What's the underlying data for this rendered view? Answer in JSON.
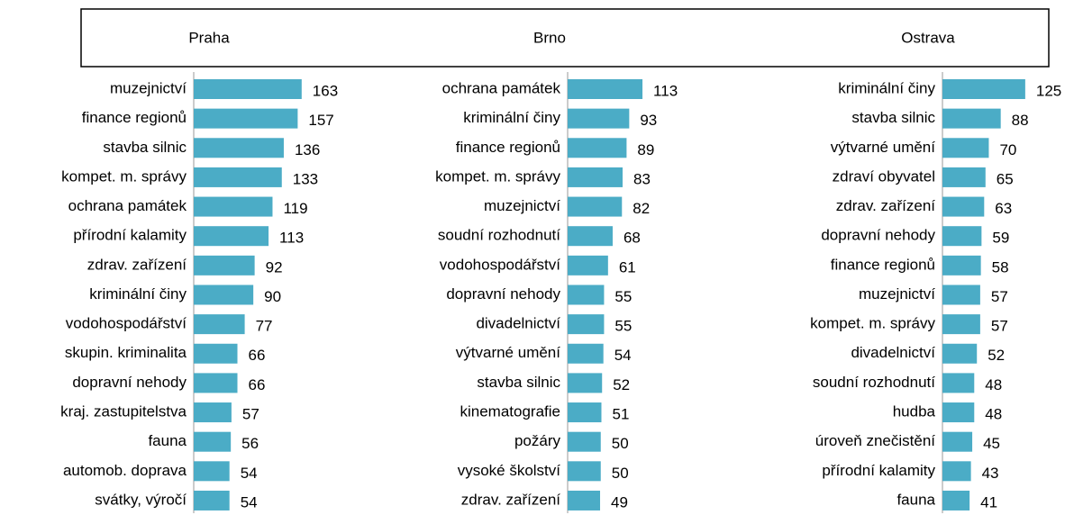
{
  "chart_data": [
    {
      "type": "bar",
      "title": "Praha",
      "color": "#4bacc6",
      "xlim": [
        0,
        200
      ],
      "categories": [
        "muzejnictví",
        "finance regionů",
        "stavba silnic",
        "kompet. m. správy",
        "ochrana památek",
        "přírodní kalamity",
        "zdrav. zařízení",
        "kriminální činy",
        "vodohospodářství",
        "skupin. kriminalita",
        "dopravní nehody",
        "kraj. zastupitelstva",
        "fauna",
        "automob. doprava",
        "svátky, výročí"
      ],
      "values": [
        163,
        157,
        136,
        133,
        119,
        113,
        92,
        90,
        77,
        66,
        66,
        57,
        56,
        54,
        54
      ]
    },
    {
      "type": "bar",
      "title": "Brno",
      "color": "#4bacc6",
      "xlim": [
        0,
        200
      ],
      "categories": [
        "ochrana památek",
        "kriminální činy",
        "finance regionů",
        "kompet. m. správy",
        "muzejnictví",
        "soudní rozhodnutí",
        "vodohospodářství",
        "dopravní nehody",
        "divadelnictví",
        "výtvarné umění",
        "stavba silnic",
        "kinematografie",
        "požáry",
        "vysoké školství",
        "zdrav. zařízení"
      ],
      "values": [
        113,
        93,
        89,
        83,
        82,
        68,
        61,
        55,
        55,
        54,
        52,
        51,
        50,
        50,
        49
      ]
    },
    {
      "type": "bar",
      "title": "Ostrava",
      "color": "#4bacc6",
      "xlim": [
        0,
        200
      ],
      "categories": [
        "kriminální činy",
        "stavba silnic",
        "výtvarné umění",
        "zdraví obyvatel",
        "zdrav. zařízení",
        "dopravní nehody",
        "finance regionů",
        "muzejnictví",
        "kompet. m. správy",
        "divadelnictví",
        "soudní rozhodnutí",
        "hudba",
        "úroveň znečistění",
        "přírodní kalamity",
        "fauna"
      ],
      "values": [
        125,
        88,
        70,
        65,
        63,
        59,
        58,
        57,
        57,
        52,
        48,
        48,
        45,
        43,
        41
      ]
    }
  ]
}
